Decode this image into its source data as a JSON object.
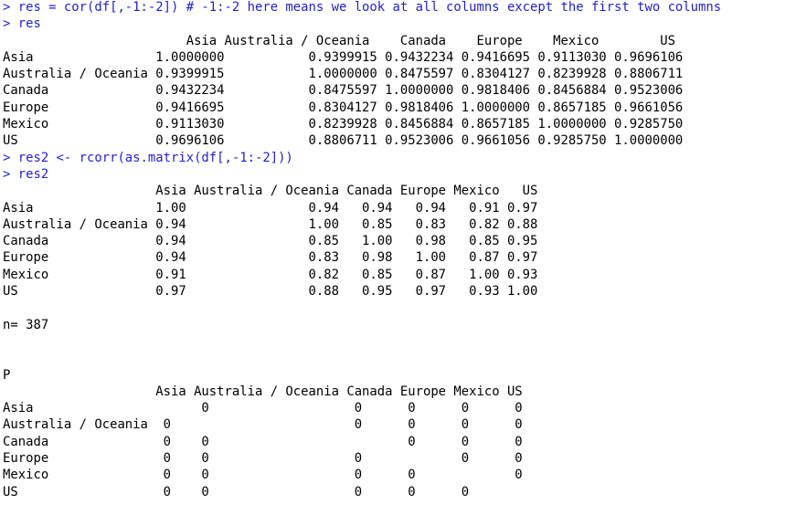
{
  "console": {
    "lines": [
      {
        "kind": "cmd",
        "text": "> res = cor(df[,-1:-2]) # -1:-2 here means we look at all columns except the first two columns"
      },
      {
        "kind": "cmd",
        "text": "> res"
      },
      {
        "kind": "out",
        "text": "                        Asia Australia / Oceania    Canada    Europe    Mexico        US"
      },
      {
        "kind": "out",
        "text": "Asia                1.0000000           0.9399915 0.9432234 0.9416695 0.9113030 0.9696106"
      },
      {
        "kind": "out",
        "text": "Australia / Oceania 0.9399915           1.0000000 0.8475597 0.8304127 0.8239928 0.8806711"
      },
      {
        "kind": "out",
        "text": "Canada              0.9432234           0.8475597 1.0000000 0.9818406 0.8456884 0.9523006"
      },
      {
        "kind": "out",
        "text": "Europe              0.9416695           0.8304127 0.9818406 1.0000000 0.8657185 0.9661056"
      },
      {
        "kind": "out",
        "text": "Mexico              0.9113030           0.8239928 0.8456884 0.8657185 1.0000000 0.9285750"
      },
      {
        "kind": "out",
        "text": "US                  0.9696106           0.8806711 0.9523006 0.9661056 0.9285750 1.0000000"
      },
      {
        "kind": "cmd",
        "text": "> res2 <- rcorr(as.matrix(df[,-1:-2]))"
      },
      {
        "kind": "cmd",
        "text": "> res2"
      },
      {
        "kind": "out",
        "text": "                    Asia Australia / Oceania Canada Europe Mexico   US"
      },
      {
        "kind": "out",
        "text": "Asia                1.00                0.94   0.94   0.94   0.91 0.97"
      },
      {
        "kind": "out",
        "text": "Australia / Oceania 0.94                1.00   0.85   0.83   0.82 0.88"
      },
      {
        "kind": "out",
        "text": "Canada              0.94                0.85   1.00   0.98   0.85 0.95"
      },
      {
        "kind": "out",
        "text": "Europe              0.94                0.83   0.98   1.00   0.87 0.97"
      },
      {
        "kind": "out",
        "text": "Mexico              0.91                0.82   0.85   0.87   1.00 0.93"
      },
      {
        "kind": "out",
        "text": "US                  0.97                0.88   0.95   0.97   0.93 1.00"
      },
      {
        "kind": "out",
        "text": ""
      },
      {
        "kind": "out",
        "text": "n= 387"
      },
      {
        "kind": "out",
        "text": ""
      },
      {
        "kind": "out",
        "text": ""
      },
      {
        "kind": "out",
        "text": "P"
      },
      {
        "kind": "out",
        "text": "                    Asia Australia / Oceania Canada Europe Mexico US"
      },
      {
        "kind": "out",
        "text": "Asia                      0                   0      0      0      0"
      },
      {
        "kind": "out",
        "text": "Australia / Oceania  0                        0      0      0      0"
      },
      {
        "kind": "out",
        "text": "Canada               0    0                          0      0      0"
      },
      {
        "kind": "out",
        "text": "Europe               0    0                   0             0      0"
      },
      {
        "kind": "out",
        "text": "Mexico               0    0                   0      0             0"
      },
      {
        "kind": "out",
        "text": "US                   0    0                   0      0      0"
      },
      {
        "kind": "cmd",
        "text": "> "
      }
    ]
  }
}
